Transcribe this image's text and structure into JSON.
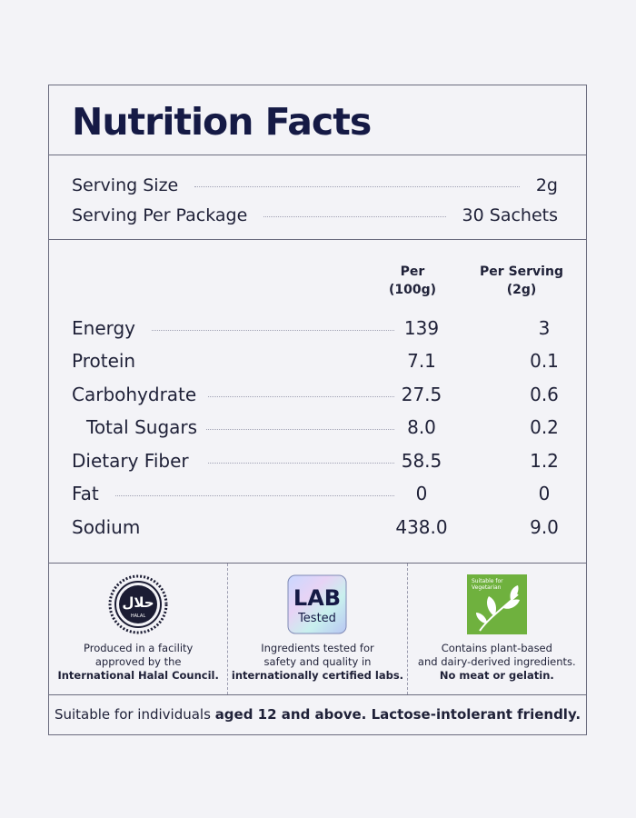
{
  "title": "Nutrition Facts",
  "serving": {
    "size_label": "Serving Size",
    "size_value": "2g",
    "per_package_label": "Serving Per Package",
    "per_package_value": "30 Sachets"
  },
  "columns": {
    "per100_line1": "Per",
    "per100_line2": "(100g)",
    "perserving_line1": "Per Serving",
    "perserving_line2": "(2g)"
  },
  "nutrients": [
    {
      "label": "Energy",
      "per100": "139",
      "perserving": "3"
    },
    {
      "label": "Protein",
      "per100": "7.1",
      "perserving": "0.1"
    },
    {
      "label": "Carbohydrate",
      "per100": "27.5",
      "perserving": "0.6"
    },
    {
      "label": "Total Sugars",
      "per100": "8.0",
      "perserving": "0.2"
    },
    {
      "label": "Dietary Fiber",
      "per100": "58.5",
      "perserving": "1.2"
    },
    {
      "label": "Fat",
      "per100": "0",
      "perserving": "0"
    },
    {
      "label": "Sodium",
      "per100": "438.0",
      "perserving": "9.0"
    }
  ],
  "badges": {
    "halal": {
      "logo_text": "حلال",
      "logo_subtext": "HALAL",
      "line1": "Produced in a facility",
      "line2": "approved by the",
      "line3": "International Halal Council."
    },
    "lab": {
      "logo_line1": "LAB",
      "logo_line2": "Tested",
      "line1": "Ingredients tested for",
      "line2": "safety and quality in",
      "line3": "internationally certified labs."
    },
    "veg": {
      "logo_text_line1": "Suitable for",
      "logo_text_line2": "Vegetarian",
      "line1": "Contains plant-based",
      "line2": "and dairy-derived ingredients.",
      "line3": "No meat or gelatin."
    }
  },
  "footer": {
    "prefix": "Suitable for individuals ",
    "bold": "aged 12 and above. Lactose-intolerant friendly."
  },
  "colors": {
    "background": "#f3f3f7",
    "title": "#151a45",
    "border": "#6a6b7e",
    "veg_green": "#6fb13e"
  }
}
